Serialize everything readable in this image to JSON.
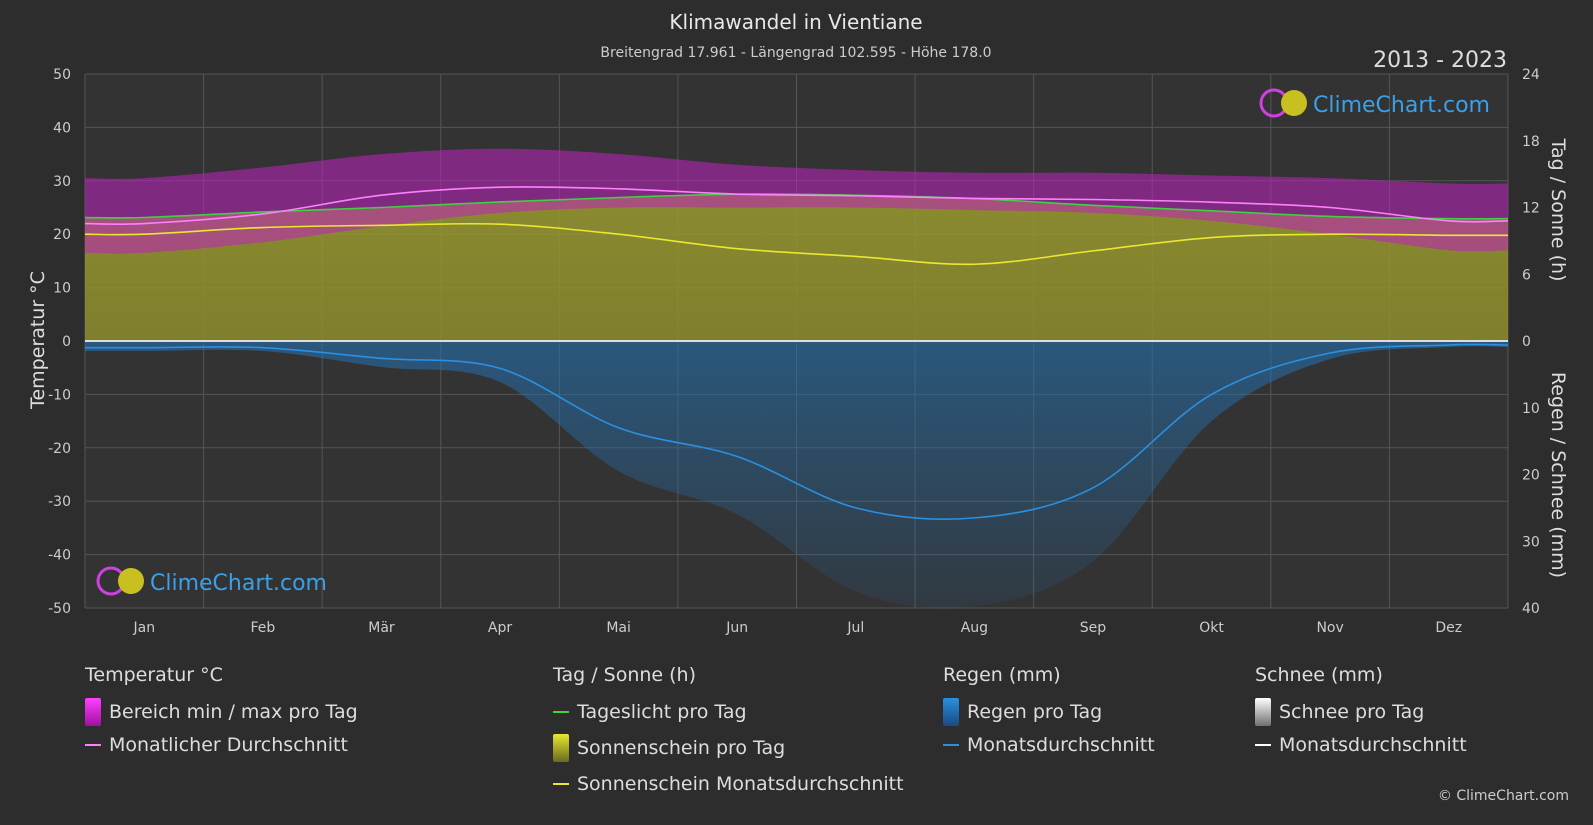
{
  "chart_data": {
    "type": "area",
    "title": "Klimawandel in Vientiane",
    "subtitle": "Breitengrad 17.961 - Längengrad 102.595 - Höhe 178.0",
    "year_range": "2013 - 2023",
    "brand": "ClimeChart.com",
    "copyright": "© ClimeChart.com",
    "left_axis": {
      "label": "Temperatur °C",
      "min": -50,
      "max": 50,
      "ticks": [
        50,
        40,
        30,
        20,
        10,
        0,
        -10,
        -20,
        -30,
        -40,
        -50
      ]
    },
    "right_axis_top": {
      "label": "Tag / Sonne (h)",
      "min": 0,
      "max": 24,
      "ticks": [
        24,
        18,
        12,
        6,
        0
      ]
    },
    "right_axis_bottom": {
      "label": "Regen / Schnee (mm)",
      "min": 0,
      "max": 40,
      "ticks": [
        0,
        10,
        20,
        30,
        40
      ]
    },
    "months": [
      "Jan",
      "Feb",
      "Mär",
      "Apr",
      "Mai",
      "Jun",
      "Jul",
      "Aug",
      "Sep",
      "Okt",
      "Nov",
      "Dez"
    ],
    "series": [
      {
        "name": "Monatlicher Durchschnitt",
        "unit": "°C",
        "color": "#ff80ff",
        "values": [
          22.0,
          23.8,
          27.3,
          28.8,
          28.5,
          27.5,
          27.2,
          26.7,
          26.5,
          26.0,
          25.0,
          22.5
        ]
      },
      {
        "name": "Bereich min / max pro Tag (max)",
        "unit": "°C",
        "color": "#d020d0",
        "values": [
          30.5,
          32.5,
          35.0,
          36.0,
          35.0,
          33.0,
          32.0,
          31.5,
          31.5,
          31.0,
          30.5,
          29.5
        ]
      },
      {
        "name": "Bereich min / max pro Tag (min)",
        "unit": "°C",
        "color": "#d020d0",
        "values": [
          16.5,
          18.5,
          21.5,
          24.0,
          25.0,
          25.0,
          25.0,
          24.5,
          24.0,
          22.5,
          20.0,
          17.0
        ]
      },
      {
        "name": "Tageslicht pro Tag",
        "unit": "h",
        "color": "#40d040",
        "values": [
          11.1,
          11.6,
          12.0,
          12.5,
          12.9,
          13.2,
          13.1,
          12.8,
          12.2,
          11.7,
          11.2,
          11.0
        ]
      },
      {
        "name": "Sonnenschein Monatsdurchschnitt",
        "unit": "h",
        "color": "#e8e830",
        "values": [
          9.6,
          10.2,
          10.4,
          10.5,
          9.6,
          8.3,
          7.6,
          6.9,
          8.1,
          9.3,
          9.6,
          9.5
        ]
      },
      {
        "name": "Regen Monatsdurchschnitt",
        "unit": "mm",
        "color": "#2a90e0",
        "values": [
          1.0,
          1.0,
          2.6,
          4.1,
          13.0,
          17.3,
          25.0,
          26.5,
          22.0,
          8.0,
          1.8,
          0.6
        ]
      }
    ]
  },
  "legend": {
    "temp": {
      "title": "Temperatur °C",
      "range": "Bereich min / max pro Tag",
      "avg": "Monatlicher Durchschnitt"
    },
    "sun": {
      "title": "Tag / Sonne (h)",
      "daylight": "Tageslicht pro Tag",
      "sunshine": "Sonnenschein pro Tag",
      "sunavg": "Sonnenschein Monatsdurchschnitt"
    },
    "rain": {
      "title": "Regen (mm)",
      "perday": "Regen pro Tag",
      "avg": "Monatsdurchschnitt"
    },
    "snow": {
      "title": "Schnee (mm)",
      "perday": "Schnee pro Tag",
      "avg": "Monatsdurchschnitt"
    }
  }
}
